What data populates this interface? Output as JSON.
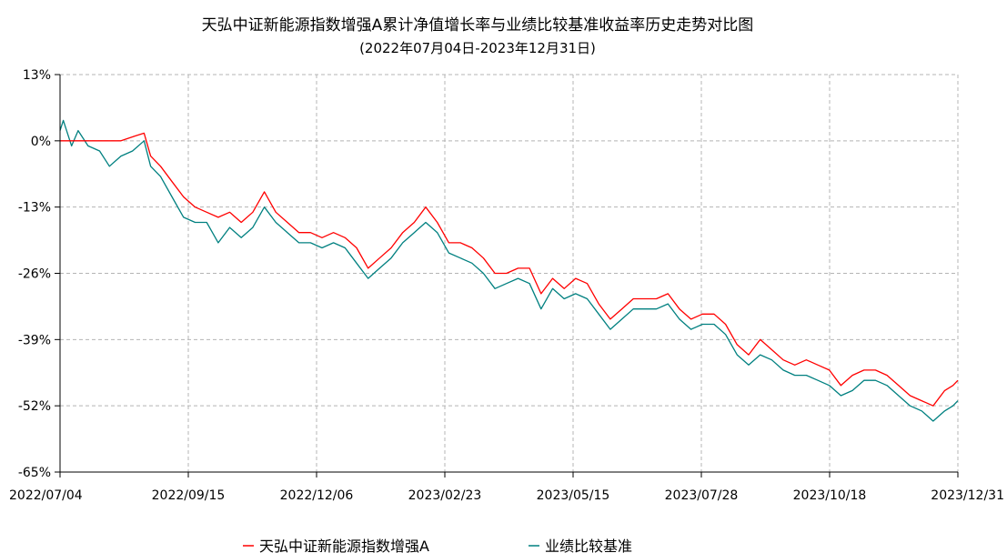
{
  "chart_data": {
    "type": "line",
    "title": "天弘中证新能源指数增强A累计净值增长率与业绩比较基准收益率历史走势对比图",
    "subtitle": "(2022年07月04日-2023年12月31日)",
    "x_ticks": [
      "2022/07/04",
      "2022/09/15",
      "2022/12/06",
      "2023/02/23",
      "2023/05/15",
      "2023/07/28",
      "2023/10/18",
      "2023/12/31"
    ],
    "y_ticks": [
      "13%",
      "0%",
      "-13%",
      "-26%",
      "-39%",
      "-52%",
      "-65%"
    ],
    "ylim": [
      -65,
      13
    ],
    "y_unit": "%",
    "x_range": [
      "2022-07-04",
      "2023-12-31"
    ],
    "grid": true,
    "legend_position": "bottom",
    "colors": {
      "fund": "#ff0000",
      "benchmark": "#008080"
    },
    "series": [
      {
        "name": "天弘中证新能源指数增强A",
        "key": "fund",
        "points": [
          [
            "2022-07-04",
            0
          ],
          [
            "2022-07-13",
            0
          ],
          [
            "2022-07-22",
            0
          ],
          [
            "2022-08-01",
            0
          ],
          [
            "2022-08-10",
            0
          ],
          [
            "2022-08-19",
            1
          ],
          [
            "2022-08-24",
            1.5
          ],
          [
            "2022-08-28",
            -3
          ],
          [
            "2022-09-03",
            -5
          ],
          [
            "2022-09-10",
            -8
          ],
          [
            "2022-09-17",
            -11
          ],
          [
            "2022-09-24",
            -13
          ],
          [
            "2022-10-01",
            -14
          ],
          [
            "2022-10-08",
            -15
          ],
          [
            "2022-10-15",
            -14
          ],
          [
            "2022-10-22",
            -16
          ],
          [
            "2022-10-29",
            -14
          ],
          [
            "2022-11-05",
            -10
          ],
          [
            "2022-11-12",
            -14
          ],
          [
            "2022-11-19",
            -16
          ],
          [
            "2022-11-26",
            -18
          ],
          [
            "2022-12-03",
            -18
          ],
          [
            "2022-12-10",
            -19
          ],
          [
            "2022-12-17",
            -18
          ],
          [
            "2022-12-24",
            -19
          ],
          [
            "2022-12-31",
            -21
          ],
          [
            "2023-01-07",
            -25
          ],
          [
            "2023-01-14",
            -23
          ],
          [
            "2023-01-21",
            -21
          ],
          [
            "2023-01-28",
            -18
          ],
          [
            "2023-02-04",
            -16
          ],
          [
            "2023-02-11",
            -13
          ],
          [
            "2023-02-18",
            -16
          ],
          [
            "2023-02-25",
            -20
          ],
          [
            "2023-03-04",
            -20
          ],
          [
            "2023-03-11",
            -21
          ],
          [
            "2023-03-18",
            -23
          ],
          [
            "2023-03-25",
            -26
          ],
          [
            "2023-04-01",
            -26
          ],
          [
            "2023-04-08",
            -25
          ],
          [
            "2023-04-15",
            -25
          ],
          [
            "2023-04-22",
            -30
          ],
          [
            "2023-04-29",
            -27
          ],
          [
            "2023-05-06",
            -29
          ],
          [
            "2023-05-13",
            -27
          ],
          [
            "2023-05-20",
            -28
          ],
          [
            "2023-05-27",
            -32
          ],
          [
            "2023-06-03",
            -35
          ],
          [
            "2023-06-10",
            -33
          ],
          [
            "2023-06-17",
            -31
          ],
          [
            "2023-06-24",
            -31
          ],
          [
            "2023-07-01",
            -31
          ],
          [
            "2023-07-08",
            -30
          ],
          [
            "2023-07-15",
            -33
          ],
          [
            "2023-07-22",
            -35
          ],
          [
            "2023-07-29",
            -34
          ],
          [
            "2023-08-05",
            -34
          ],
          [
            "2023-08-12",
            -36
          ],
          [
            "2023-08-19",
            -40
          ],
          [
            "2023-08-26",
            -42
          ],
          [
            "2023-09-02",
            -39
          ],
          [
            "2023-09-09",
            -41
          ],
          [
            "2023-09-16",
            -43
          ],
          [
            "2023-09-23",
            -44
          ],
          [
            "2023-09-30",
            -43
          ],
          [
            "2023-10-07",
            -44
          ],
          [
            "2023-10-14",
            -45
          ],
          [
            "2023-10-21",
            -48
          ],
          [
            "2023-10-28",
            -46
          ],
          [
            "2023-11-04",
            -45
          ],
          [
            "2023-11-11",
            -45
          ],
          [
            "2023-11-18",
            -46
          ],
          [
            "2023-11-25",
            -48
          ],
          [
            "2023-12-02",
            -50
          ],
          [
            "2023-12-09",
            -51
          ],
          [
            "2023-12-16",
            -52
          ],
          [
            "2023-12-23",
            -49
          ],
          [
            "2023-12-28",
            -48
          ],
          [
            "2023-12-31",
            -47
          ]
        ]
      },
      {
        "name": "业绩比较基准",
        "key": "benchmark",
        "points": [
          [
            "2022-07-04",
            2
          ],
          [
            "2022-07-06",
            4
          ],
          [
            "2022-07-11",
            -1
          ],
          [
            "2022-07-15",
            2
          ],
          [
            "2022-07-21",
            -1
          ],
          [
            "2022-07-28",
            -2
          ],
          [
            "2022-08-03",
            -5
          ],
          [
            "2022-08-10",
            -3
          ],
          [
            "2022-08-17",
            -2
          ],
          [
            "2022-08-24",
            0
          ],
          [
            "2022-08-28",
            -5
          ],
          [
            "2022-09-03",
            -7
          ],
          [
            "2022-09-10",
            -11
          ],
          [
            "2022-09-17",
            -15
          ],
          [
            "2022-09-24",
            -16
          ],
          [
            "2022-10-01",
            -16
          ],
          [
            "2022-10-08",
            -20
          ],
          [
            "2022-10-15",
            -17
          ],
          [
            "2022-10-22",
            -19
          ],
          [
            "2022-10-29",
            -17
          ],
          [
            "2022-11-05",
            -13
          ],
          [
            "2022-11-12",
            -16
          ],
          [
            "2022-11-19",
            -18
          ],
          [
            "2022-11-26",
            -20
          ],
          [
            "2022-12-03",
            -20
          ],
          [
            "2022-12-10",
            -21
          ],
          [
            "2022-12-17",
            -20
          ],
          [
            "2022-12-24",
            -21
          ],
          [
            "2022-12-31",
            -24
          ],
          [
            "2023-01-07",
            -27
          ],
          [
            "2023-01-14",
            -25
          ],
          [
            "2023-01-21",
            -23
          ],
          [
            "2023-01-28",
            -20
          ],
          [
            "2023-02-04",
            -18
          ],
          [
            "2023-02-11",
            -16
          ],
          [
            "2023-02-18",
            -18
          ],
          [
            "2023-02-25",
            -22
          ],
          [
            "2023-03-04",
            -23
          ],
          [
            "2023-03-11",
            -24
          ],
          [
            "2023-03-18",
            -26
          ],
          [
            "2023-03-25",
            -29
          ],
          [
            "2023-04-01",
            -28
          ],
          [
            "2023-04-08",
            -27
          ],
          [
            "2023-04-15",
            -28
          ],
          [
            "2023-04-22",
            -33
          ],
          [
            "2023-04-29",
            -29
          ],
          [
            "2023-05-06",
            -31
          ],
          [
            "2023-05-13",
            -30
          ],
          [
            "2023-05-20",
            -31
          ],
          [
            "2023-05-27",
            -34
          ],
          [
            "2023-06-03",
            -37
          ],
          [
            "2023-06-10",
            -35
          ],
          [
            "2023-06-17",
            -33
          ],
          [
            "2023-06-24",
            -33
          ],
          [
            "2023-07-01",
            -33
          ],
          [
            "2023-07-08",
            -32
          ],
          [
            "2023-07-15",
            -35
          ],
          [
            "2023-07-22",
            -37
          ],
          [
            "2023-07-29",
            -36
          ],
          [
            "2023-08-05",
            -36
          ],
          [
            "2023-08-12",
            -38
          ],
          [
            "2023-08-19",
            -42
          ],
          [
            "2023-08-26",
            -44
          ],
          [
            "2023-09-02",
            -42
          ],
          [
            "2023-09-09",
            -43
          ],
          [
            "2023-09-16",
            -45
          ],
          [
            "2023-09-23",
            -46
          ],
          [
            "2023-09-30",
            -46
          ],
          [
            "2023-10-07",
            -47
          ],
          [
            "2023-10-14",
            -48
          ],
          [
            "2023-10-21",
            -50
          ],
          [
            "2023-10-28",
            -49
          ],
          [
            "2023-11-04",
            -47
          ],
          [
            "2023-11-11",
            -47
          ],
          [
            "2023-11-18",
            -48
          ],
          [
            "2023-11-25",
            -50
          ],
          [
            "2023-12-02",
            -52
          ],
          [
            "2023-12-09",
            -53
          ],
          [
            "2023-12-16",
            -55
          ],
          [
            "2023-12-23",
            -53
          ],
          [
            "2023-12-28",
            -52
          ],
          [
            "2023-12-31",
            -51
          ]
        ]
      }
    ]
  }
}
